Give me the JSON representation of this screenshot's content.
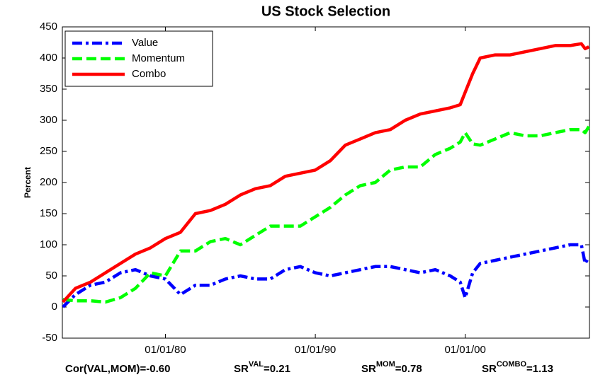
{
  "chart_data": {
    "type": "line",
    "title": "US Stock Selection",
    "ylabel": "Percent",
    "x": [
      "1973-03-01",
      "1974-01-01",
      "1975-01-01",
      "1976-01-01",
      "1977-01-01",
      "1978-01-01",
      "1979-01-01",
      "1980-01-01",
      "1981-01-01",
      "1982-01-01",
      "1983-01-01",
      "1984-01-01",
      "1985-01-01",
      "1986-01-01",
      "1987-01-01",
      "1988-01-01",
      "1989-01-01",
      "1990-01-01",
      "1991-01-01",
      "1992-01-01",
      "1993-01-01",
      "1994-01-01",
      "1995-01-01",
      "1996-01-01",
      "1997-01-01",
      "1998-01-01",
      "1999-01-01",
      "1999-09-01",
      "2000-01-01",
      "2000-07-01",
      "2001-01-01",
      "2002-01-01",
      "2003-01-01",
      "2004-01-01",
      "2005-01-01",
      "2006-01-01",
      "2007-01-01",
      "2007-10-01",
      "2008-01-01",
      "2008-04-01"
    ],
    "series": [
      {
        "name": "Value",
        "color": "#0000ff",
        "style": "dashdot",
        "values": [
          0,
          20,
          35,
          40,
          55,
          60,
          50,
          45,
          20,
          35,
          35,
          45,
          50,
          45,
          45,
          60,
          65,
          55,
          50,
          55,
          60,
          65,
          65,
          60,
          55,
          60,
          50,
          40,
          15,
          55,
          70,
          75,
          80,
          85,
          90,
          95,
          100,
          100,
          70,
          80
        ]
      },
      {
        "name": "Momentum",
        "color": "#00ff00",
        "style": "dashed",
        "values": [
          12,
          10,
          10,
          8,
          15,
          30,
          55,
          50,
          90,
          90,
          105,
          110,
          100,
          115,
          130,
          130,
          130,
          145,
          160,
          180,
          195,
          200,
          220,
          225,
          225,
          245,
          255,
          265,
          280,
          262,
          260,
          270,
          280,
          275,
          275,
          280,
          285,
          285,
          280,
          290
        ]
      },
      {
        "name": "Combo",
        "color": "#ff0000",
        "style": "solid",
        "values": [
          8,
          30,
          40,
          55,
          70,
          85,
          95,
          110,
          120,
          150,
          155,
          165,
          180,
          190,
          195,
          210,
          215,
          220,
          235,
          260,
          270,
          280,
          285,
          300,
          310,
          315,
          320,
          325,
          345,
          375,
          400,
          405,
          405,
          410,
          415,
          420,
          420,
          423,
          415,
          418
        ]
      }
    ],
    "xlim": [
      "1973-02-15",
      "2008-04-15"
    ],
    "xticks": [
      {
        "value": "1980-01-01",
        "label": "01/01/80"
      },
      {
        "value": "1990-01-01",
        "label": "01/01/90"
      },
      {
        "value": "2000-01-01",
        "label": "01/01/00"
      }
    ],
    "ylim": [
      -50,
      450
    ],
    "yticks": [
      -50,
      0,
      50,
      100,
      150,
      200,
      250,
      300,
      350,
      400,
      450
    ],
    "legend": "upper-left",
    "grid": false,
    "annotations": [
      {
        "prefix": "Cor(VAL,MOM)=-0.60"
      },
      {
        "prefix": "SR",
        "sup": "VAL",
        "suffix": "=0.21"
      },
      {
        "prefix": "SR",
        "sup": "MOM",
        "suffix": "=0.78"
      },
      {
        "prefix": "SR",
        "sup": "COMBO",
        "suffix": "=1.13"
      }
    ]
  }
}
